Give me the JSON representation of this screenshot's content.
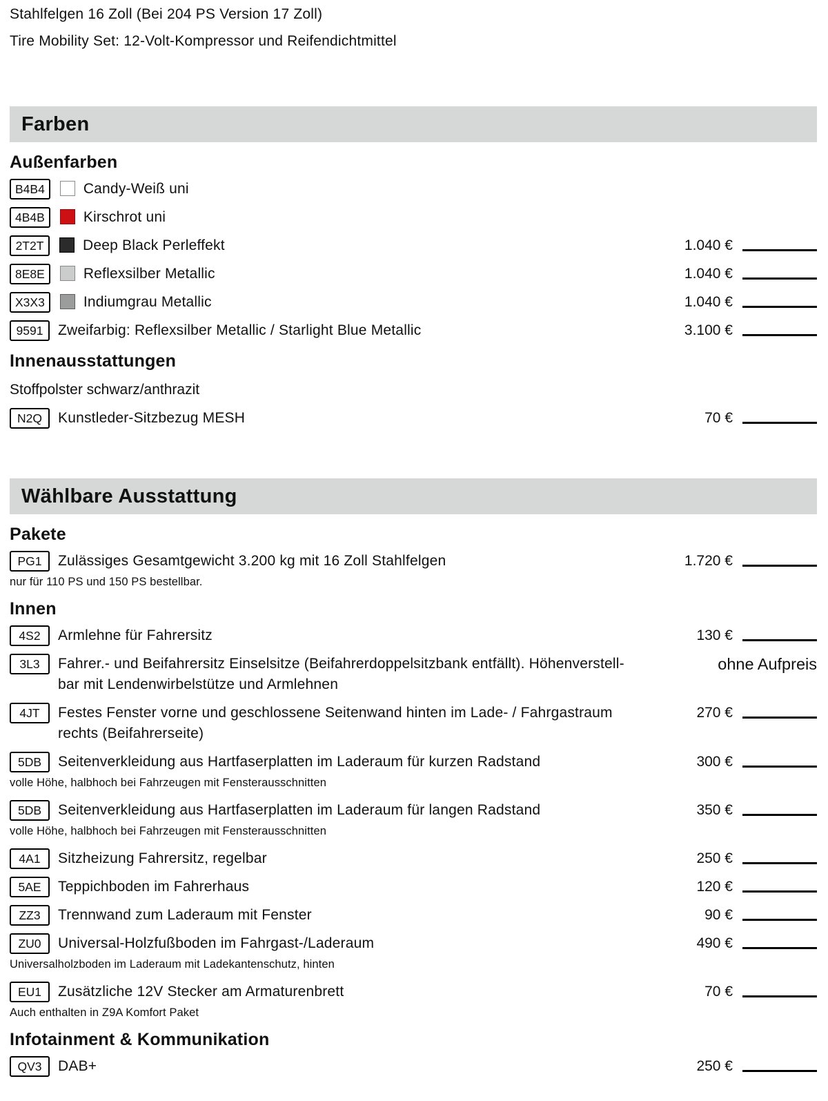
{
  "intro_lines": [
    "Stahlfelgen 16 Zoll (Bei 204 PS Version 17 Zoll)",
    "Tire Mobility Set: 12-Volt-Kompressor und Reifendichtmittel"
  ],
  "colors_accent": {
    "section_bar_bg": "#d6d7d7",
    "fill_line": "#000000"
  },
  "farben": {
    "title": "Farben",
    "exterior_heading": "Außenfarben",
    "exterior_colors": [
      {
        "code": "B4B4",
        "swatch": "#ffffff",
        "swatch_border": "#8a8a8a",
        "label": "Candy-Weiß uni",
        "price": ""
      },
      {
        "code": "4B4B",
        "swatch": "#cc1013",
        "swatch_border": "#9c0a0c",
        "label": "Kirschrot uni",
        "price": ""
      },
      {
        "code": "2T2T",
        "swatch": "#2b2b2b",
        "swatch_border": "#000000",
        "label": "Deep Black Perleffekt",
        "price": "1.040 €"
      },
      {
        "code": "8E8E",
        "swatch": "#cbcdcc",
        "swatch_border": "#8a8a8a",
        "label": "Reflexsilber Metallic",
        "price": "1.040 €"
      },
      {
        "code": "X3X3",
        "swatch": "#9b9d9c",
        "swatch_border": "#5f5f5f",
        "label": "Indiumgrau Metallic",
        "price": "1.040 €"
      },
      {
        "code": "9591",
        "label": "Zweifarbig: Reflexsilber Metallic / Starlight Blue Metallic",
        "price": "3.100 €"
      }
    ],
    "interior_heading": "Innenausstattungen",
    "interior_text": "Stoffpolster schwarz/anthrazit",
    "interior_items": [
      {
        "code": "N2Q",
        "label": "Kunstleder-Sitzbezug MESH",
        "price": "70 €"
      }
    ]
  },
  "waehlbare": {
    "title": "Wählbare Ausstattung",
    "groups": [
      {
        "heading": "Pakete",
        "items": [
          {
            "code": "PG1",
            "label": "Zulässiges Gesamtgewicht 3.200 kg mit 16 Zoll Stahlfelgen",
            "price": "1.720 €",
            "note": "nur für 110 PS und 150 PS bestellbar."
          }
        ]
      },
      {
        "heading": "Innen",
        "items": [
          {
            "code": "4S2",
            "label": "Armlehne für Fahrersitz",
            "price": "130 €"
          },
          {
            "code": "3L3",
            "label": "Fahrer.- und Beifahrersitz Einselsitze (Beifahrerdoppelsitzbank entfällt). Höhenverstell-\nbar mit Lendenwirbelstütze und Armlehnen",
            "price_note": "ohne Aufpreis"
          },
          {
            "code": "4JT",
            "label": "Festes Fenster vorne und geschlossene Seitenwand hinten im Lade- / Fahrgastraum\nrechts (Beifahrerseite)",
            "price": "270 €"
          },
          {
            "code": "5DB",
            "label": "Seitenverkleidung aus Hartfaserplatten im Laderaum für kurzen Radstand",
            "price": "300 €",
            "note": "volle Höhe, halbhoch bei Fahrzeugen mit Fensterausschnitten"
          },
          {
            "code": "5DB",
            "label": "Seitenverkleidung aus Hartfaserplatten im Laderaum für langen Radstand",
            "price": "350 €",
            "note": "volle Höhe, halbhoch bei Fahrzeugen mit Fensterausschnitten"
          },
          {
            "code": "4A1",
            "label": "Sitzheizung Fahrersitz, regelbar",
            "price": "250 €"
          },
          {
            "code": "5AE",
            "label": "Teppichboden im Fahrerhaus",
            "price": "120 €"
          },
          {
            "code": "ZZ3",
            "label": "Trennwand zum Laderaum mit Fenster",
            "price": "90 €"
          },
          {
            "code": "ZU0",
            "label": "Universal-Holzfußboden im Fahrgast-/Laderaum",
            "price": "490 €",
            "note": "Universalholzboden im Laderaum mit Ladekantenschutz, hinten"
          },
          {
            "code": "EU1",
            "label": "Zusätzliche 12V Stecker am Armaturenbrett",
            "price": "70 €",
            "note": "Auch enthalten in Z9A Komfort Paket"
          }
        ]
      },
      {
        "heading": "Infotainment & Kommunikation",
        "items": [
          {
            "code": "QV3",
            "label": "DAB+",
            "price": "250 €"
          }
        ]
      }
    ]
  }
}
